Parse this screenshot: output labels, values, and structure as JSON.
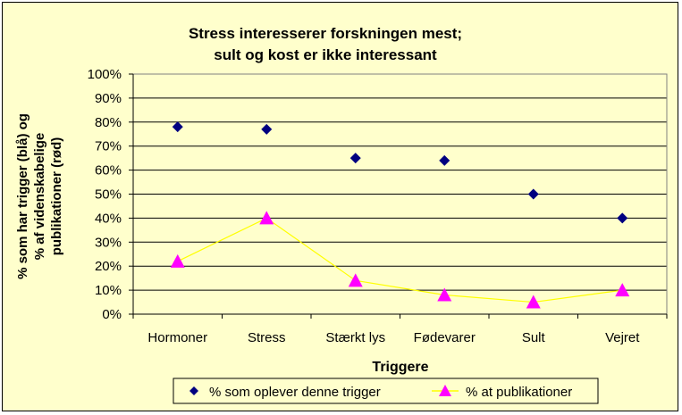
{
  "chart_data": {
    "type": "scatter",
    "title": "Stress interesserer forskningen mest;",
    "subtitle": "sult og kost er ikke interessant",
    "xlabel": "Triggere",
    "ylabel_lines": [
      "% som har trigger (blå) og",
      "% af videnskabelige",
      "publikationer (rød)"
    ],
    "categories": [
      "Hormoner",
      "Stress",
      "Stærkt lys",
      "Fødevarer",
      "Sult",
      "Vejret"
    ],
    "ylim": [
      0,
      100
    ],
    "y_ticks": [
      "0%",
      "10%",
      "20%",
      "30%",
      "40%",
      "50%",
      "60%",
      "70%",
      "80%",
      "90%",
      "100%"
    ],
    "grid": true,
    "legend_position": "bottom",
    "series": [
      {
        "name": "% som oplever denne trigger",
        "marker": "diamond",
        "line": false,
        "color": "#000080",
        "values": [
          78,
          77,
          65,
          64,
          50,
          40
        ]
      },
      {
        "name": "% at publikationer",
        "marker": "triangle",
        "line": true,
        "color": "#FF00FF",
        "line_color": "#FFFF00",
        "values": [
          22,
          40,
          14,
          8,
          5,
          10
        ]
      }
    ]
  },
  "colors": {
    "background": "#FFFFCC",
    "plot_area": "#FFFFCC",
    "grid": "#000000"
  }
}
